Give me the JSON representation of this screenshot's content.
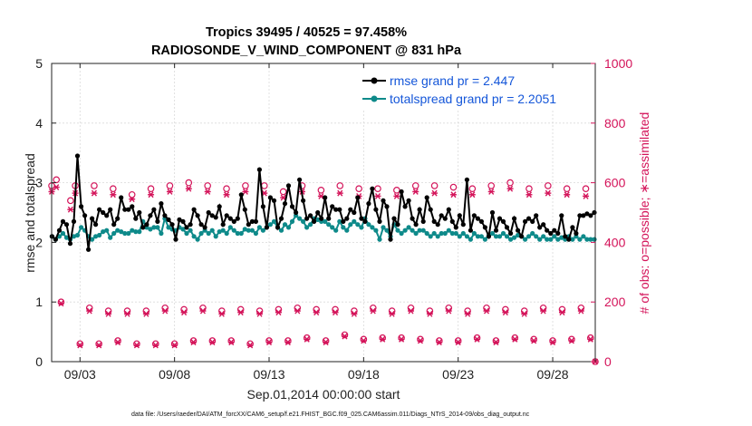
{
  "chart_data": {
    "type": "line",
    "title_line1": "Tropics 39495 / 40525 = 97.458%",
    "title_line2": "RADIOSONDE_V_WIND_COMPONENT @ 831 hPa",
    "xlabel": "Sep.01,2014 00:00:00 start",
    "ylabel_left": "rmse and totalspread",
    "ylabel_right": "# of obs: o=possible; ∗=assimilated",
    "footer": "data file: /Users/raeder/DAI/ATM_forcXX/CAM6_setup/f.e21.FHIST_BGC.f09_025.CAM6assim.011/Diags_NTrS_2014-09/obs_diag_output.nc",
    "xlim": [
      1.5,
      30.25
    ],
    "ylim_left": [
      0,
      5
    ],
    "ylim_right": [
      0,
      1000
    ],
    "x_ticks": [
      {
        "value": 3,
        "label": "09/03"
      },
      {
        "value": 8,
        "label": "09/08"
      },
      {
        "value": 13,
        "label": "09/13"
      },
      {
        "value": 18,
        "label": "09/18"
      },
      {
        "value": 23,
        "label": "09/23"
      },
      {
        "value": 28,
        "label": "09/28"
      }
    ],
    "left_ticks": [
      {
        "value": 0,
        "label": "0"
      },
      {
        "value": 1,
        "label": "1"
      },
      {
        "value": 2,
        "label": "2"
      },
      {
        "value": 3,
        "label": "3"
      },
      {
        "value": 4,
        "label": "4"
      },
      {
        "value": 5,
        "label": "5"
      }
    ],
    "right_ticks": [
      {
        "value": 0,
        "label": "0"
      },
      {
        "value": 200,
        "label": "200"
      },
      {
        "value": 400,
        "label": "400"
      },
      {
        "value": 600,
        "label": "600"
      },
      {
        "value": 800,
        "label": "800"
      },
      {
        "value": 1000,
        "label": "1000"
      }
    ],
    "series": [
      {
        "name": "rmse grand pr = 2.447",
        "axis": "left",
        "color": "#000000",
        "values": [
          2.1,
          2.05,
          2.2,
          2.35,
          2.3,
          1.98,
          2.35,
          3.45,
          2.6,
          2.45,
          1.88,
          2.4,
          2.3,
          2.55,
          2.5,
          2.45,
          2.55,
          2.3,
          2.4,
          2.75,
          2.55,
          2.55,
          2.6,
          2.4,
          2.5,
          2.25,
          2.3,
          2.45,
          2.55,
          2.35,
          2.65,
          2.45,
          2.38,
          2.3,
          2.05,
          2.38,
          2.35,
          2.25,
          2.3,
          2.55,
          2.45,
          2.3,
          2.25,
          2.5,
          2.45,
          2.42,
          2.6,
          2.3,
          2.45,
          2.4,
          2.35,
          2.4,
          2.8,
          2.55,
          2.3,
          2.35,
          2.35,
          3.22,
          2.6,
          2.25,
          2.75,
          2.7,
          2.25,
          2.4,
          2.65,
          2.95,
          2.6,
          2.5,
          3.05,
          2.7,
          2.4,
          2.45,
          2.35,
          2.5,
          2.4,
          2.75,
          2.4,
          2.6,
          2.55,
          2.55,
          2.35,
          2.4,
          2.55,
          2.5,
          2.75,
          2.4,
          2.35,
          2.65,
          2.9,
          2.55,
          2.35,
          2.7,
          2.6,
          2.05,
          2.4,
          2.3,
          2.85,
          2.6,
          2.7,
          2.4,
          2.3,
          2.55,
          2.35,
          2.75,
          2.55,
          2.35,
          2.3,
          2.45,
          2.4,
          2.55,
          2.35,
          2.25,
          2.45,
          2.3,
          3.05,
          2.2,
          2.45,
          2.4,
          2.35,
          2.25,
          2.1,
          2.5,
          2.2,
          2.4,
          2.35,
          2.25,
          2.15,
          2.4,
          2.2,
          2.1,
          2.35,
          2.4,
          2.35,
          2.45,
          2.25,
          2.3,
          2.2,
          2.15,
          2.2,
          2.15,
          2.45,
          2.1,
          2.05,
          2.25,
          2.15,
          2.45,
          2.45,
          2.48,
          2.45,
          2.5
        ]
      },
      {
        "name": "totalspread grand pr = 2.2051",
        "axis": "left",
        "color": "#0e8a8a",
        "values": [
          2.1,
          2.05,
          2.1,
          2.15,
          2.08,
          2.05,
          2.1,
          2.12,
          2.25,
          2.2,
          2.1,
          2.05,
          2.1,
          2.12,
          2.18,
          2.2,
          2.08,
          2.15,
          2.2,
          2.18,
          2.15,
          2.15,
          2.2,
          2.18,
          2.18,
          2.35,
          2.25,
          2.22,
          2.25,
          2.25,
          2.15,
          2.4,
          2.25,
          2.22,
          2.2,
          2.25,
          2.22,
          2.15,
          2.2,
          2.1,
          2.05,
          2.15,
          2.2,
          2.15,
          2.2,
          2.1,
          2.18,
          2.2,
          2.15,
          2.25,
          2.2,
          2.15,
          2.15,
          2.22,
          2.2,
          2.2,
          2.15,
          2.25,
          2.2,
          2.25,
          2.3,
          2.35,
          2.25,
          2.2,
          2.3,
          2.25,
          2.35,
          2.45,
          2.4,
          2.35,
          2.25,
          2.3,
          2.4,
          2.38,
          2.35,
          2.35,
          2.3,
          2.25,
          2.2,
          2.35,
          2.25,
          2.2,
          2.3,
          2.35,
          2.3,
          2.25,
          2.4,
          2.3,
          2.25,
          2.2,
          2.05,
          2.25,
          2.2,
          2.1,
          2.3,
          2.2,
          2.15,
          2.2,
          2.25,
          2.2,
          2.15,
          2.2,
          2.2,
          2.15,
          2.1,
          2.15,
          2.1,
          2.15,
          2.15,
          2.2,
          2.15,
          2.15,
          2.1,
          2.15,
          2.1,
          2.05,
          2.15,
          2.1,
          2.1,
          2.05,
          2.12,
          2.15,
          2.1,
          2.1,
          2.15,
          2.1,
          2.05,
          2.08,
          2.12,
          2.1,
          2.05,
          2.1,
          2.15,
          2.1,
          2.05,
          2.1,
          2.05,
          2.05,
          2.1,
          2.05,
          2.08,
          2.05,
          2.1,
          2.05,
          2.1,
          2.05,
          2.1,
          2.05,
          2.05,
          2.05
        ]
      },
      {
        "name": "possible",
        "axis": "right",
        "color": "#d4145a",
        "marker": "circle",
        "x": [
          1.5,
          1.75,
          2.0,
          2.5,
          2.75,
          3.0,
          3.5,
          3.75,
          4.0,
          4.5,
          4.75,
          5.0,
          5.5,
          5.75,
          6.0,
          6.5,
          6.75,
          7.0,
          7.5,
          7.75,
          8.0,
          8.5,
          8.75,
          9.0,
          9.5,
          9.75,
          10.0,
          10.5,
          10.75,
          11.0,
          11.5,
          11.75,
          12.0,
          12.5,
          12.75,
          13.0,
          13.5,
          13.75,
          14.0,
          14.5,
          14.75,
          15.0,
          15.5,
          15.75,
          16.0,
          16.5,
          16.75,
          17.0,
          17.5,
          17.75,
          18.0,
          18.5,
          18.75,
          19.0,
          19.5,
          19.75,
          20.0,
          20.5,
          20.75,
          21.0,
          21.5,
          21.75,
          22.0,
          22.5,
          22.75,
          23.0,
          23.5,
          23.75,
          24.0,
          24.5,
          24.75,
          25.0,
          25.5,
          25.75,
          26.0,
          26.5,
          26.75,
          27.0,
          27.5,
          27.75,
          28.0,
          28.5,
          28.75,
          29.0,
          29.5,
          29.75,
          30.0,
          30.25
        ],
        "values": [
          590,
          610,
          200,
          540,
          590,
          60,
          180,
          590,
          60,
          170,
          580,
          70,
          170,
          560,
          60,
          170,
          580,
          60,
          180,
          590,
          60,
          175,
          600,
          70,
          180,
          590,
          70,
          170,
          580,
          70,
          175,
          590,
          60,
          170,
          590,
          70,
          175,
          570,
          70,
          180,
          590,
          80,
          175,
          575,
          70,
          175,
          590,
          90,
          170,
          580,
          75,
          180,
          580,
          80,
          170,
          575,
          80,
          180,
          590,
          75,
          170,
          590,
          70,
          180,
          585,
          70,
          170,
          580,
          80,
          180,
          590,
          70,
          175,
          600,
          80,
          170,
          580,
          75,
          180,
          590,
          70,
          175,
          580,
          75,
          180,
          580,
          80,
          0
        ],
        "note": "three observation-count bands: upper (~540-615), middle (~160-200), lower (~50-90)"
      },
      {
        "name": "assimilated",
        "axis": "right",
        "color": "#d4145a",
        "marker": "asterisk",
        "x": [
          1.5,
          1.75,
          2.0,
          2.5,
          2.75,
          3.0,
          3.5,
          3.75,
          4.0,
          4.5,
          4.75,
          5.0,
          5.5,
          5.75,
          6.0,
          6.5,
          6.75,
          7.0,
          7.5,
          7.75,
          8.0,
          8.5,
          8.75,
          9.0,
          9.5,
          9.75,
          10.0,
          10.5,
          10.75,
          11.0,
          11.5,
          11.75,
          12.0,
          12.5,
          12.75,
          13.0,
          13.5,
          13.75,
          14.0,
          14.5,
          14.75,
          15.0,
          15.5,
          15.75,
          16.0,
          16.5,
          16.75,
          17.0,
          17.5,
          17.75,
          18.0,
          18.5,
          18.75,
          19.0,
          19.5,
          19.75,
          20.0,
          20.5,
          20.75,
          21.0,
          21.5,
          21.75,
          22.0,
          22.5,
          22.75,
          23.0,
          23.5,
          23.75,
          24.0,
          24.5,
          24.75,
          25.0,
          25.5,
          25.75,
          26.0,
          26.5,
          26.75,
          27.0,
          27.5,
          27.75,
          28.0,
          28.5,
          28.75,
          29.0,
          29.5,
          29.75,
          30.0,
          30.25
        ],
        "values": [
          570,
          585,
          195,
          510,
          565,
          55,
          170,
          565,
          55,
          160,
          560,
          65,
          160,
          545,
          55,
          160,
          560,
          55,
          170,
          570,
          55,
          165,
          580,
          65,
          170,
          570,
          65,
          160,
          560,
          65,
          165,
          570,
          55,
          160,
          565,
          65,
          165,
          550,
          65,
          170,
          570,
          75,
          165,
          555,
          65,
          165,
          565,
          85,
          160,
          555,
          70,
          170,
          555,
          75,
          160,
          555,
          75,
          170,
          570,
          70,
          160,
          565,
          65,
          170,
          560,
          65,
          160,
          560,
          75,
          170,
          570,
          65,
          165,
          580,
          75,
          160,
          560,
          70,
          170,
          565,
          65,
          165,
          560,
          70,
          170,
          555,
          75,
          0
        ]
      }
    ],
    "legend": {
      "placement": "top-right"
    }
  }
}
